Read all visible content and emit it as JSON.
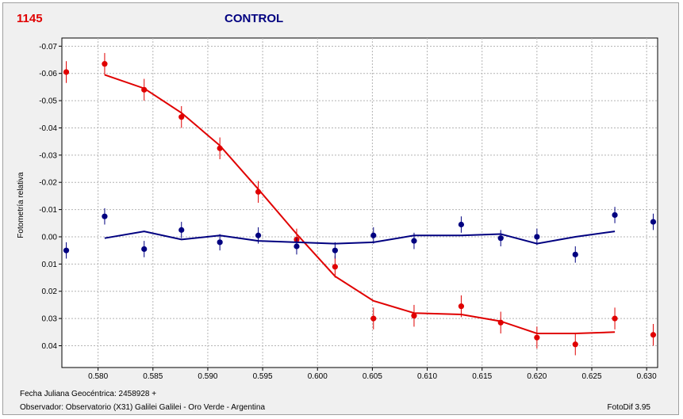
{
  "header": {
    "id_label": "1145",
    "title": "CONTROL",
    "id_color": "#e00000",
    "title_color": "#000080"
  },
  "footer": {
    "date_line": "Fecha Juliana Geocéntrica: 2458928 +",
    "observer_line": "Observador: Observatorio (X31) Galilei Galilei - Oro Verde - Argentina",
    "software": "FotoDif 3.95"
  },
  "chart_data": {
    "type": "scatter",
    "ylabel": "Fotometría relativa",
    "xlabel": "",
    "xlim": [
      0.5767,
      0.631
    ],
    "ylim": [
      0.048,
      -0.073
    ],
    "y_inverted": true,
    "grid": true,
    "x_ticks": [
      0.58,
      0.585,
      0.59,
      0.595,
      0.6,
      0.605,
      0.61,
      0.615,
      0.62,
      0.625,
      0.63
    ],
    "x_tick_labels": [
      "0.580",
      "0.585",
      "0.590",
      "0.595",
      "0.600",
      "0.605",
      "0.610",
      "0.615",
      "0.620",
      "0.625",
      "0.630"
    ],
    "y_ticks": [
      -0.07,
      -0.06,
      -0.05,
      -0.04,
      -0.03,
      -0.02,
      -0.01,
      0.0,
      0.01,
      0.02,
      0.03,
      0.04
    ],
    "y_tick_labels": [
      "-0.07",
      "-0.06",
      "-0.05",
      "-0.04",
      "-0.03",
      "-0.02",
      "-0.01",
      "0.00",
      "0.01",
      "0.02",
      "0.03",
      "0.04"
    ],
    "series": [
      {
        "color": "#e00000",
        "points": [
          {
            "x": 0.5771,
            "y": -0.0605,
            "err": 0.004
          },
          {
            "x": 0.5806,
            "y": -0.0635,
            "err": 0.004
          },
          {
            "x": 0.5842,
            "y": -0.054,
            "err": 0.004
          },
          {
            "x": 0.5876,
            "y": -0.044,
            "err": 0.004
          },
          {
            "x": 0.5911,
            "y": -0.0325,
            "err": 0.004
          },
          {
            "x": 0.5946,
            "y": -0.0165,
            "err": 0.004
          },
          {
            "x": 0.5981,
            "y": 0.001,
            "err": 0.004
          },
          {
            "x": 0.6016,
            "y": 0.011,
            "err": 0.004
          },
          {
            "x": 0.6051,
            "y": 0.03,
            "err": 0.004
          },
          {
            "x": 0.6088,
            "y": 0.029,
            "err": 0.004
          },
          {
            "x": 0.6131,
            "y": 0.0255,
            "err": 0.004
          },
          {
            "x": 0.6167,
            "y": 0.0315,
            "err": 0.004
          },
          {
            "x": 0.62,
            "y": 0.037,
            "err": 0.004
          },
          {
            "x": 0.6235,
            "y": 0.0395,
            "err": 0.004
          },
          {
            "x": 0.6271,
            "y": 0.03,
            "err": 0.004
          },
          {
            "x": 0.6306,
            "y": 0.036,
            "err": 0.004
          }
        ],
        "fit": [
          {
            "x": 0.5806,
            "y": -0.0595
          },
          {
            "x": 0.5842,
            "y": -0.0545
          },
          {
            "x": 0.5876,
            "y": -0.0455
          },
          {
            "x": 0.5911,
            "y": -0.0335
          },
          {
            "x": 0.5946,
            "y": -0.0175
          },
          {
            "x": 0.5981,
            "y": -0.001
          },
          {
            "x": 0.6016,
            "y": 0.0145
          },
          {
            "x": 0.6051,
            "y": 0.0235
          },
          {
            "x": 0.6088,
            "y": 0.028
          },
          {
            "x": 0.6131,
            "y": 0.0285
          },
          {
            "x": 0.6167,
            "y": 0.031
          },
          {
            "x": 0.62,
            "y": 0.0355
          },
          {
            "x": 0.6235,
            "y": 0.0355
          },
          {
            "x": 0.6271,
            "y": 0.035
          }
        ]
      },
      {
        "color": "#000080",
        "points": [
          {
            "x": 0.5771,
            "y": 0.005,
            "err": 0.003
          },
          {
            "x": 0.5806,
            "y": -0.0075,
            "err": 0.003
          },
          {
            "x": 0.5842,
            "y": 0.0045,
            "err": 0.003
          },
          {
            "x": 0.5876,
            "y": -0.0025,
            "err": 0.003
          },
          {
            "x": 0.5911,
            "y": 0.002,
            "err": 0.003
          },
          {
            "x": 0.5946,
            "y": -0.0005,
            "err": 0.003
          },
          {
            "x": 0.5981,
            "y": 0.0035,
            "err": 0.003
          },
          {
            "x": 0.6016,
            "y": 0.005,
            "err": 0.003
          },
          {
            "x": 0.6051,
            "y": -0.0005,
            "err": 0.003
          },
          {
            "x": 0.6088,
            "y": 0.0015,
            "err": 0.003
          },
          {
            "x": 0.6131,
            "y": -0.0045,
            "err": 0.003
          },
          {
            "x": 0.6167,
            "y": 0.0005,
            "err": 0.003
          },
          {
            "x": 0.62,
            "y": 0.0,
            "err": 0.003
          },
          {
            "x": 0.6235,
            "y": 0.0065,
            "err": 0.003
          },
          {
            "x": 0.6271,
            "y": -0.008,
            "err": 0.003
          },
          {
            "x": 0.6306,
            "y": -0.0055,
            "err": 0.003
          }
        ],
        "fit": [
          {
            "x": 0.5806,
            "y": 0.0005
          },
          {
            "x": 0.5842,
            "y": -0.002
          },
          {
            "x": 0.5876,
            "y": 0.001
          },
          {
            "x": 0.5911,
            "y": -0.0005
          },
          {
            "x": 0.5946,
            "y": 0.0015
          },
          {
            "x": 0.5981,
            "y": 0.002
          },
          {
            "x": 0.6016,
            "y": 0.0025
          },
          {
            "x": 0.6051,
            "y": 0.002
          },
          {
            "x": 0.6088,
            "y": -0.0005
          },
          {
            "x": 0.6131,
            "y": -0.0005
          },
          {
            "x": 0.6167,
            "y": -0.001
          },
          {
            "x": 0.62,
            "y": 0.0025
          },
          {
            "x": 0.6235,
            "y": 0.0
          },
          {
            "x": 0.6271,
            "y": -0.002
          }
        ]
      }
    ]
  }
}
